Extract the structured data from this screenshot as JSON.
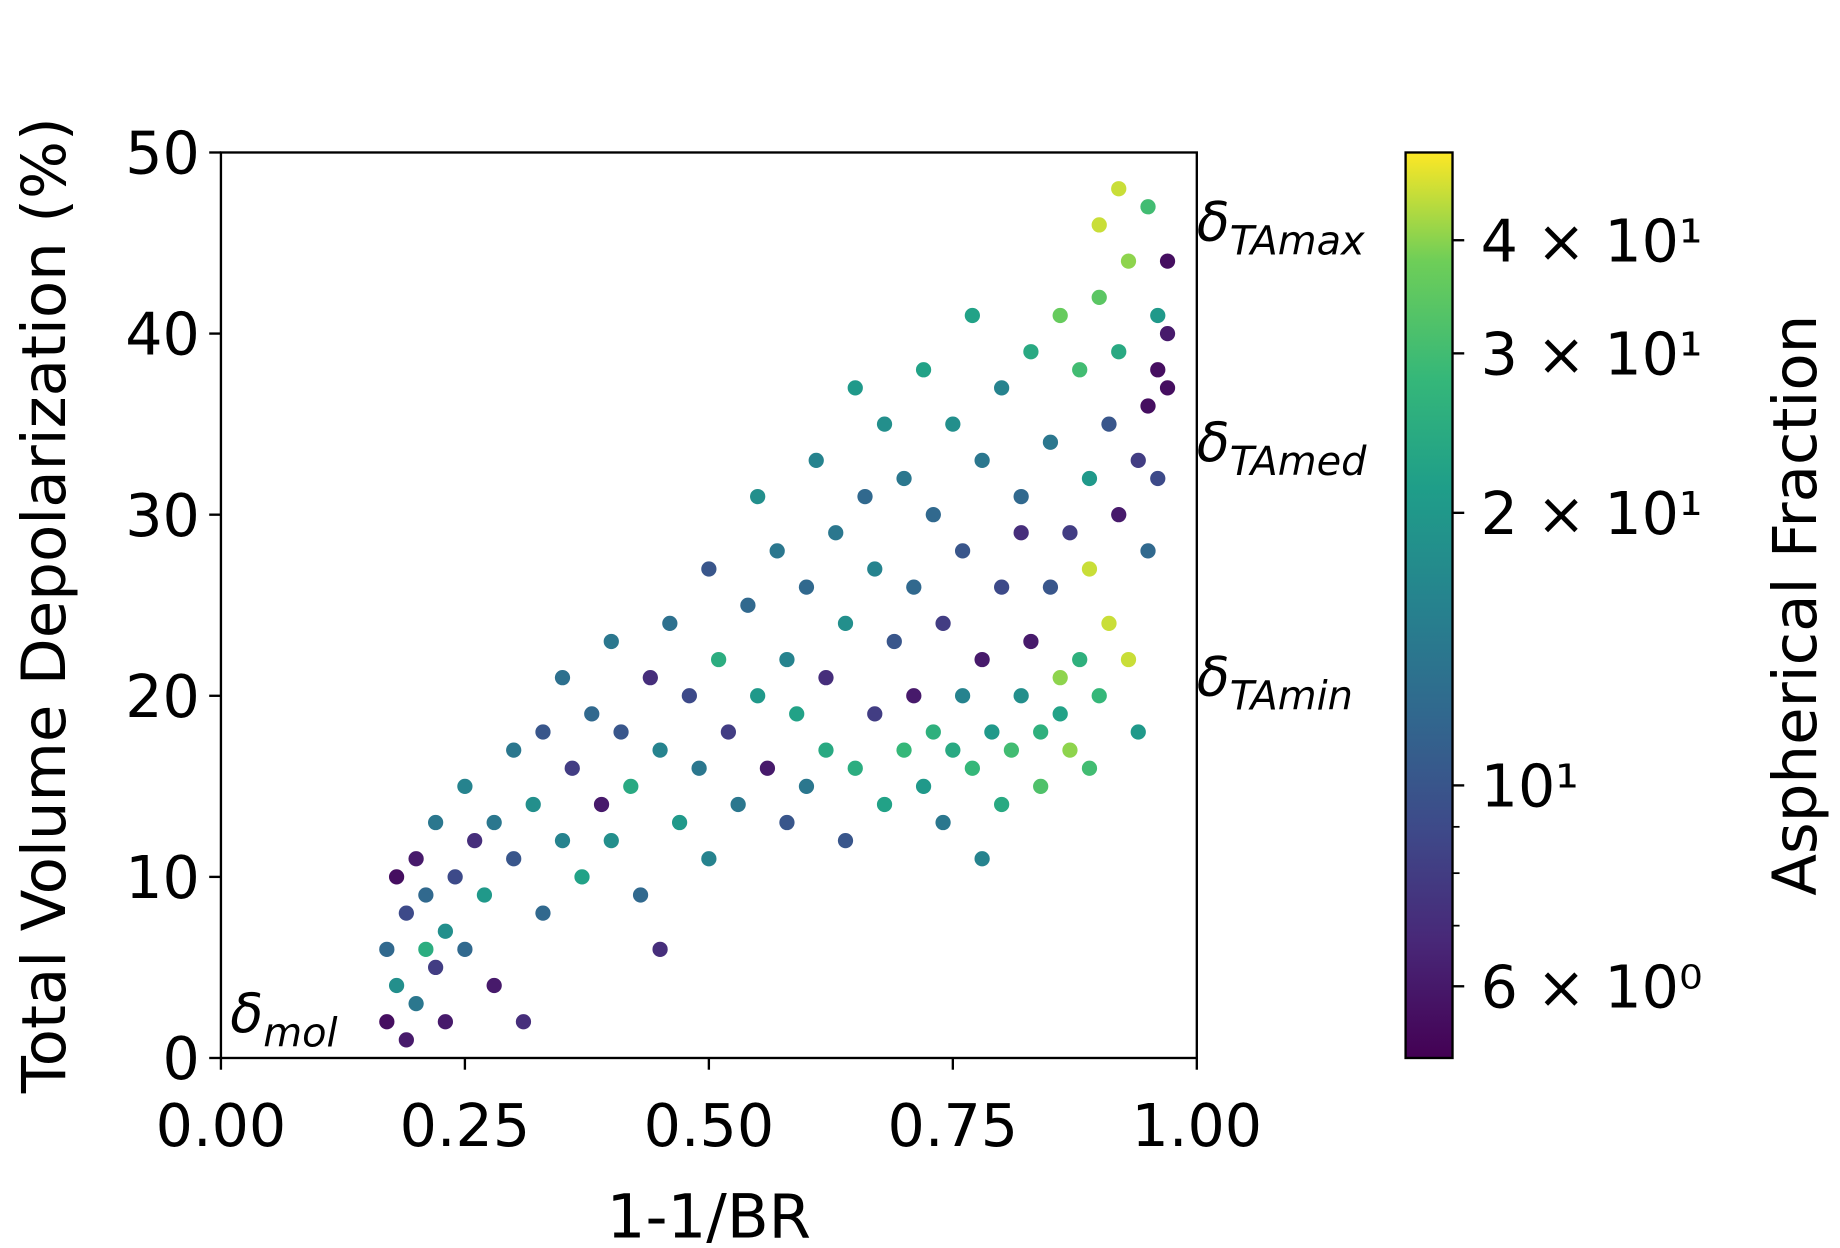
{
  "chart_data": {
    "type": "scatter",
    "xlabel": "1-1/BR",
    "ylabel": "Total Volume Depolarization (%)",
    "colorbar_label": "Aspherical Fraction",
    "colormap": "viridis",
    "clim": [
      5,
      50
    ],
    "color_scale": "log",
    "cticks": [
      {
        "value": 6,
        "label": "6 × 10⁰"
      },
      {
        "value": 10,
        "label": "10¹"
      },
      {
        "value": 20,
        "label": "2 × 10¹"
      },
      {
        "value": 30,
        "label": "3 × 10¹"
      },
      {
        "value": 40,
        "label": "4 × 10¹"
      }
    ],
    "cminor_ticks": [
      7,
      8,
      9
    ],
    "xlim": [
      0,
      1
    ],
    "ylim": [
      0,
      50
    ],
    "xticks": [
      {
        "value": 0,
        "label": "0.00"
      },
      {
        "value": 0.25,
        "label": "0.25"
      },
      {
        "value": 0.5,
        "label": "0.50"
      },
      {
        "value": 0.75,
        "label": "0.75"
      },
      {
        "value": 1,
        "label": "1.00"
      }
    ],
    "yticks": [
      0,
      10,
      20,
      30,
      40,
      50
    ],
    "annotations": [
      {
        "symbol": "δ",
        "subscript": "mol"
      },
      {
        "symbol": "δ",
        "subscript": "TAmax"
      },
      {
        "symbol": "δ",
        "subscript": "TAmed"
      },
      {
        "symbol": "δ",
        "subscript": "TAmin"
      }
    ],
    "x": [
      0.17,
      0.17,
      0.18,
      0.18,
      0.19,
      0.19,
      0.2,
      0.2,
      0.21,
      0.21,
      0.22,
      0.22,
      0.23,
      0.23,
      0.24,
      0.25,
      0.25,
      0.26,
      0.27,
      0.28,
      0.28,
      0.3,
      0.3,
      0.31,
      0.32,
      0.33,
      0.33,
      0.35,
      0.35,
      0.36,
      0.37,
      0.38,
      0.39,
      0.4,
      0.4,
      0.41,
      0.42,
      0.43,
      0.44,
      0.45,
      0.45,
      0.46,
      0.47,
      0.48,
      0.49,
      0.5,
      0.5,
      0.51,
      0.52,
      0.53,
      0.54,
      0.55,
      0.55,
      0.56,
      0.57,
      0.58,
      0.58,
      0.59,
      0.6,
      0.6,
      0.61,
      0.62,
      0.62,
      0.63,
      0.64,
      0.64,
      0.65,
      0.65,
      0.66,
      0.67,
      0.67,
      0.68,
      0.68,
      0.69,
      0.7,
      0.7,
      0.71,
      0.71,
      0.72,
      0.72,
      0.73,
      0.73,
      0.74,
      0.74,
      0.75,
      0.75,
      0.76,
      0.76,
      0.77,
      0.77,
      0.78,
      0.78,
      0.79,
      0.8,
      0.8,
      0.8,
      0.81,
      0.82,
      0.82,
      0.83,
      0.83,
      0.84,
      0.84,
      0.85,
      0.85,
      0.86,
      0.86,
      0.87,
      0.87,
      0.88,
      0.88,
      0.89,
      0.89,
      0.9,
      0.9,
      0.9,
      0.91,
      0.91,
      0.92,
      0.92,
      0.92,
      0.93,
      0.93,
      0.94,
      0.94,
      0.95,
      0.95,
      0.95,
      0.96,
      0.96,
      0.96,
      0.97,
      0.97,
      0.97,
      0.89,
      0.86,
      0.82,
      0.78
    ],
    "y": [
      2,
      6,
      10,
      4,
      8,
      1,
      11,
      3,
      6,
      9,
      5,
      13,
      7,
      2,
      10,
      15,
      6,
      12,
      9,
      13,
      4,
      11,
      17,
      2,
      14,
      8,
      18,
      12,
      21,
      16,
      10,
      19,
      14,
      23,
      12,
      18,
      15,
      9,
      21,
      17,
      6,
      24,
      13,
      20,
      16,
      27,
      11,
      22,
      18,
      14,
      25,
      20,
      31,
      16,
      28,
      13,
      22,
      19,
      26,
      15,
      33,
      21,
      17,
      29,
      12,
      24,
      16,
      37,
      31,
      19,
      27,
      14,
      35,
      23,
      17,
      32,
      20,
      26,
      15,
      38,
      18,
      30,
      24,
      13,
      35,
      17,
      28,
      20,
      41,
      16,
      33,
      22,
      18,
      37,
      26,
      14,
      17,
      31,
      20,
      39,
      23,
      18,
      15,
      34,
      26,
      19,
      41,
      29,
      17,
      38,
      22,
      32,
      27,
      46,
      20,
      42,
      35,
      24,
      48,
      30,
      39,
      22,
      44,
      33,
      18,
      47,
      36,
      28,
      41,
      38,
      32,
      44,
      37,
      40,
      16,
      21,
      29,
      11
    ],
    "color_values": [
      5.5,
      12,
      5.5,
      18,
      9,
      6,
      6,
      14,
      25,
      12,
      8,
      14,
      18,
      6,
      9,
      16,
      12,
      7,
      20,
      14,
      6,
      10,
      14,
      7,
      18,
      12,
      10,
      16,
      13,
      8,
      22,
      12,
      6,
      14,
      18,
      10,
      24,
      12,
      7,
      16,
      7,
      13,
      20,
      9,
      14,
      10,
      16,
      25,
      8,
      14,
      12,
      20,
      18,
      6,
      14,
      10,
      16,
      22,
      12,
      14,
      16,
      7,
      24,
      14,
      10,
      18,
      25,
      20,
      12,
      8,
      16,
      22,
      18,
      10,
      28,
      14,
      6,
      12,
      20,
      22,
      26,
      12,
      8,
      14,
      18,
      24,
      10,
      16,
      22,
      28,
      14,
      6,
      20,
      16,
      9,
      24,
      30,
      12,
      18,
      24,
      6,
      26,
      32,
      14,
      10,
      22,
      36,
      8,
      40,
      30,
      26,
      20,
      45,
      45,
      28,
      34,
      10,
      45,
      45,
      6,
      24,
      45,
      40,
      8,
      20,
      30,
      5.5,
      12,
      20,
      5.5,
      9,
      5.5,
      5.5,
      6,
      30,
      40,
      7,
      16
    ]
  }
}
